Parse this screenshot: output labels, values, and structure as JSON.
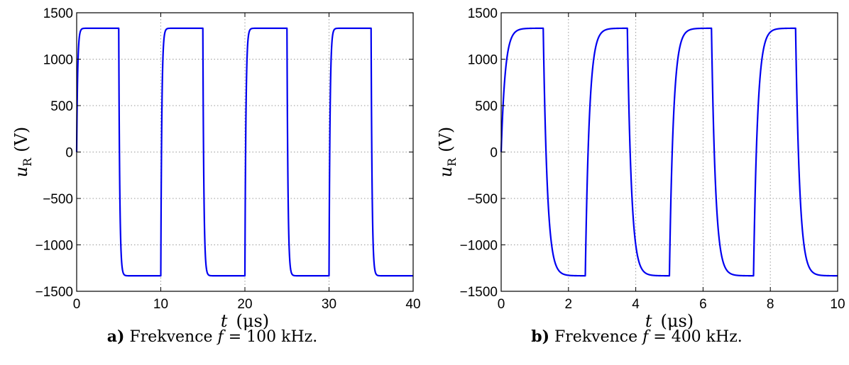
{
  "chart_data": [
    {
      "id": "a",
      "type": "line",
      "xlabel_var": "t",
      "xlabel_unit": "(μs)",
      "ylabel_var": "u",
      "ylabel_sub": "R",
      "ylabel_unit": "(V)",
      "xlim": [
        0,
        40
      ],
      "ylim": [
        -1500,
        1500
      ],
      "xticks": [
        "0",
        "10",
        "20",
        "30",
        "40"
      ],
      "xtick_values": [
        0,
        10,
        20,
        30,
        40
      ],
      "yticks": [
        "1500",
        "1000",
        "500",
        "0",
        "−500",
        "−1000",
        "−1500"
      ],
      "ytick_values": [
        1500,
        1000,
        500,
        0,
        -500,
        -1000,
        -1500
      ],
      "grid": true,
      "series_color": "#0000f0",
      "amplitude": 1333,
      "period_us": 10,
      "time_constant_us": 0.12,
      "caption_label": "a)",
      "caption_text": "Frekvence",
      "caption_symbol": "f",
      "caption_value": "= 100 kHz."
    },
    {
      "id": "b",
      "type": "line",
      "xlabel_var": "t",
      "xlabel_unit": "(μs)",
      "ylabel_var": "u",
      "ylabel_sub": "R",
      "ylabel_unit": "(V)",
      "xlim": [
        0,
        10
      ],
      "ylim": [
        -1500,
        1500
      ],
      "xticks": [
        "0",
        "2",
        "4",
        "6",
        "8",
        "10"
      ],
      "xtick_values": [
        0,
        2,
        4,
        6,
        8,
        10
      ],
      "yticks": [
        "1500",
        "1000",
        "500",
        "0",
        "−500",
        "−1000",
        "−1500"
      ],
      "ytick_values": [
        1500,
        1000,
        500,
        0,
        -500,
        -1000,
        -1500
      ],
      "grid": true,
      "series_color": "#0000f0",
      "amplitude": 1333,
      "period_us": 2.5,
      "time_constant_us": 0.12,
      "caption_label": "b)",
      "caption_text": "Frekvence",
      "caption_symbol": "f",
      "caption_value": "= 400 kHz."
    }
  ]
}
